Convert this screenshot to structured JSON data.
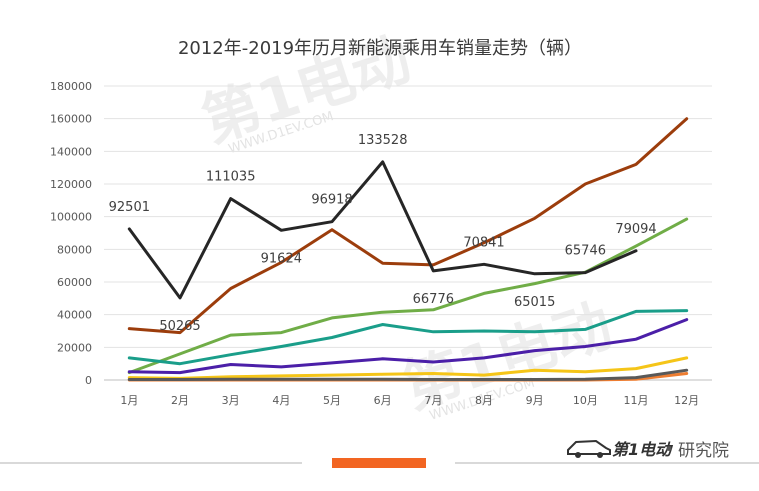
{
  "chart_data": {
    "type": "line",
    "title": "2012年-2019年历月新能源乘用车销量走势（辆）",
    "categories": [
      "1月",
      "2月",
      "3月",
      "4月",
      "5月",
      "6月",
      "7月",
      "8月",
      "9月",
      "10月",
      "11月",
      "12月"
    ],
    "ylim": [
      0,
      180000
    ],
    "yticks": [
      "0",
      "20000",
      "40000",
      "60000",
      "80000",
      "100000",
      "120000",
      "140000",
      "160000",
      "180000"
    ],
    "grid": true,
    "legend": "none",
    "series": [
      {
        "color": "#9c3d0c",
        "values": [
          31500,
          29000,
          56000,
          72000,
          92000,
          71500,
          70500,
          84000,
          99000,
          120000,
          132000,
          160000
        ]
      },
      {
        "color": "#70ad47",
        "values": [
          4500,
          16000,
          27500,
          29000,
          38000,
          41500,
          43000,
          53000,
          59000,
          66000,
          82000,
          98500
        ]
      },
      {
        "color": "#1a9e8a",
        "values": [
          13500,
          10000,
          15500,
          20500,
          26000,
          34000,
          29500,
          30000,
          29500,
          31000,
          42000,
          42500
        ]
      },
      {
        "color": "#4b1fa8",
        "values": [
          5000,
          4500,
          9500,
          8000,
          10500,
          13000,
          11000,
          13500,
          18000,
          20500,
          25000,
          37000
        ]
      },
      {
        "color": "#f5c518",
        "values": [
          1500,
          1000,
          2000,
          2500,
          3000,
          3500,
          4000,
          3000,
          6000,
          5000,
          7000,
          13500
        ]
      },
      {
        "color": "#ed7d31",
        "values": [
          0,
          0,
          0,
          0,
          0,
          0,
          0,
          0,
          0,
          0,
          500,
          4000
        ]
      },
      {
        "color": "#595959",
        "values": [
          300,
          300,
          400,
          400,
          400,
          400,
          300,
          300,
          300,
          400,
          1500,
          6000
        ]
      },
      {
        "color": "#262626",
        "values": [
          92501,
          50265,
          111035,
          91624,
          96918,
          133528,
          66776,
          70841,
          65015,
          65746,
          79094,
          null
        ],
        "data_labels": [
          "92501",
          "50265",
          "111035",
          "91624",
          "96918",
          "133528",
          "66776",
          "70841",
          "65015",
          "65746",
          "79094"
        ]
      }
    ]
  },
  "branding": {
    "watermark": "第1电动",
    "watermark_url": "WWW.D1EV.COM",
    "logo_text": "第1电动",
    "separator": "•",
    "suffix": "研究院"
  }
}
